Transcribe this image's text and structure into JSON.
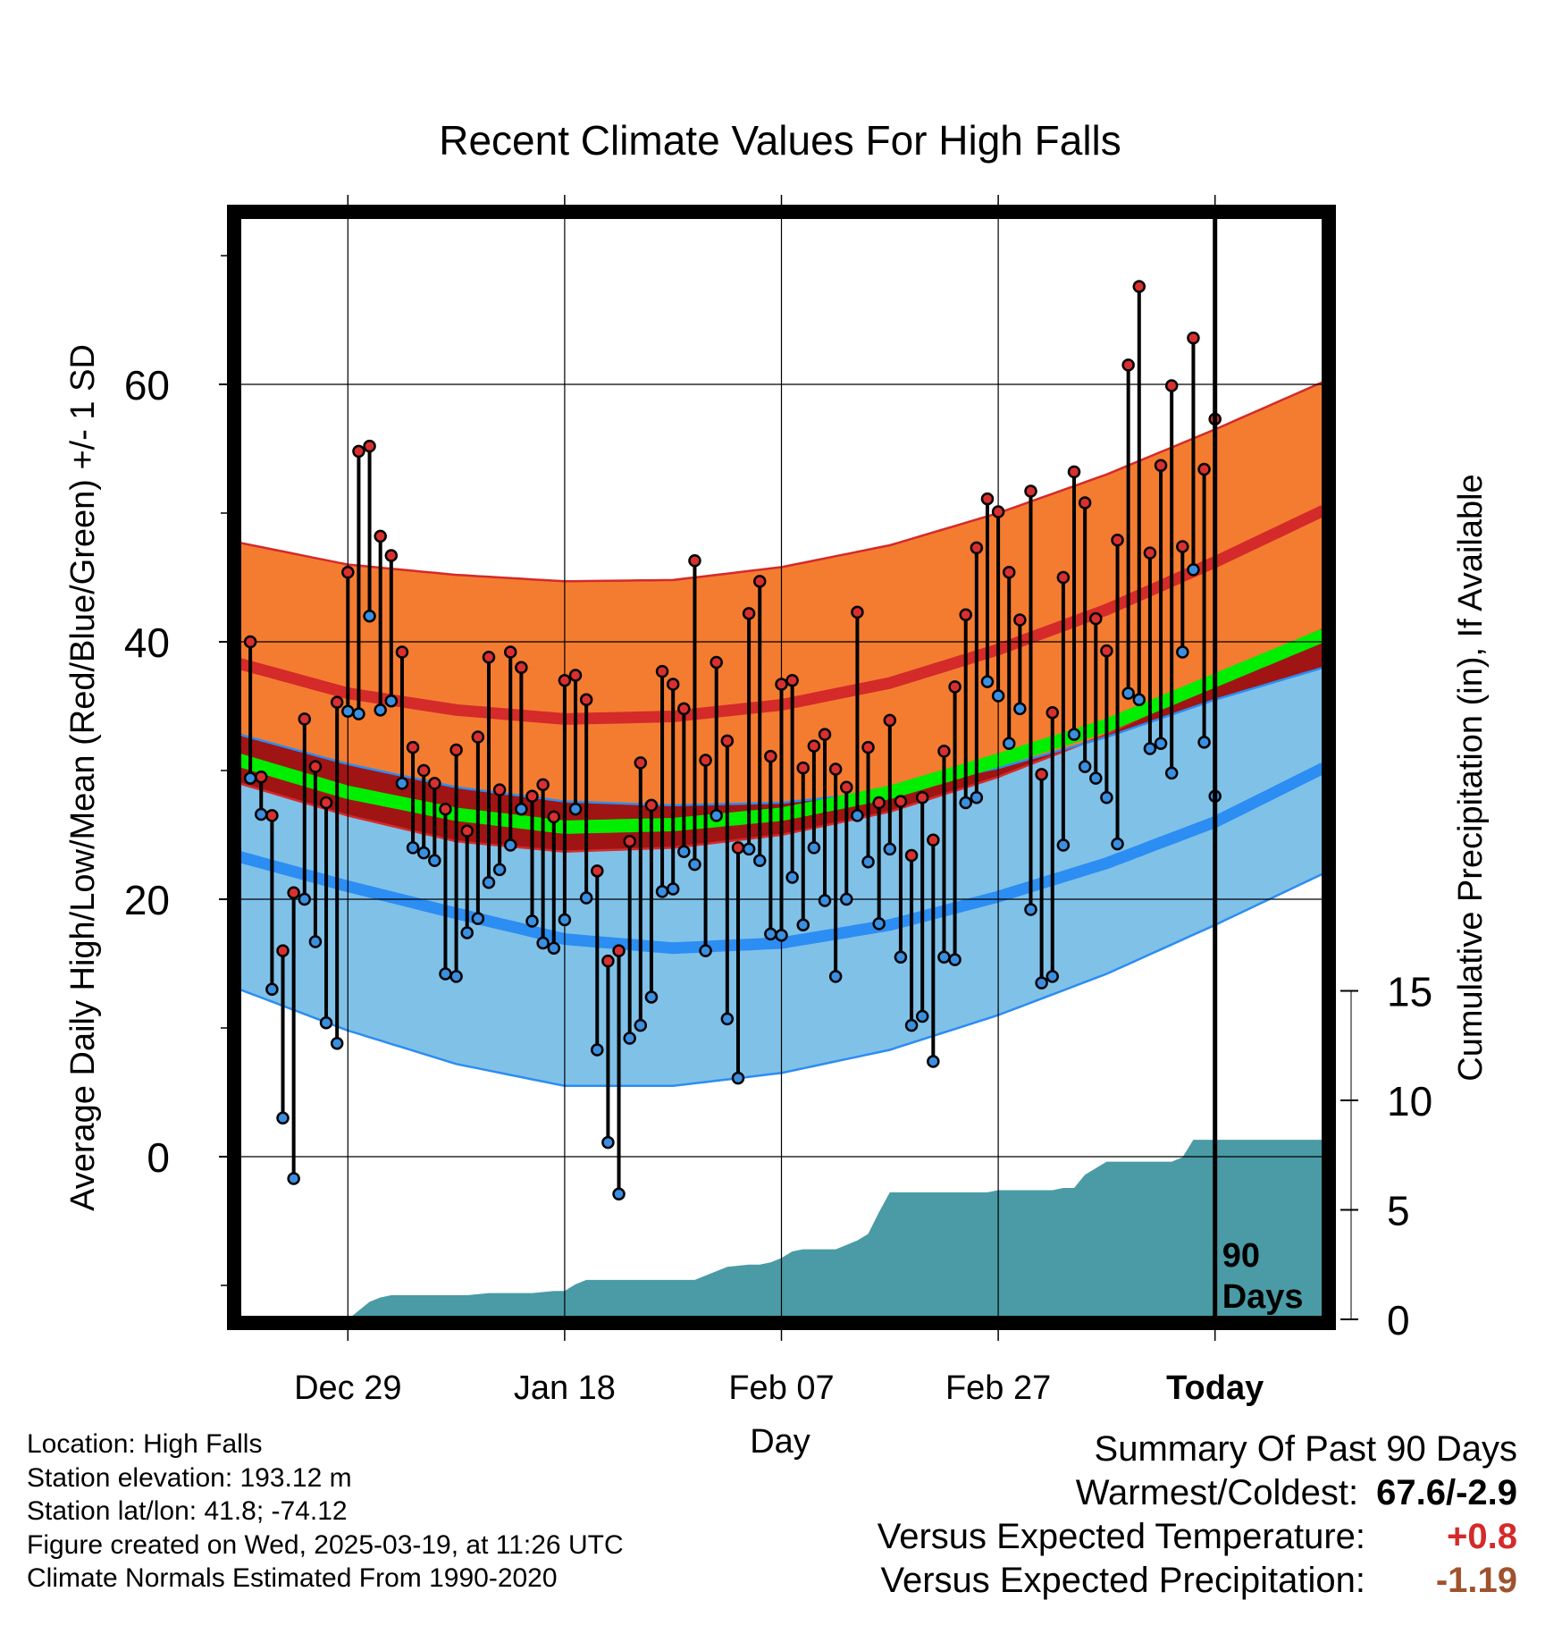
{
  "chart_data": {
    "type": "line",
    "title": "Recent Climate Values For High Falls",
    "xlabel": "Day",
    "ylabel_left": "Average Daily High/Low/Mean (Red/Blue/Green) +/- 1 SD",
    "ylabel_right": "Cumulative Precipitation (in), If Available",
    "x_range_days": [
      -90,
      10
    ],
    "ylim_temp": [
      -12.5,
      73
    ],
    "ylim_precip": [
      0,
      30
    ],
    "grid": true,
    "x_ticks": [
      {
        "day": -80,
        "label": "Dec 29"
      },
      {
        "day": -60,
        "label": "Jan 18"
      },
      {
        "day": -40,
        "label": "Feb 07"
      },
      {
        "day": -20,
        "label": "Feb 27"
      },
      {
        "day": 0,
        "label": "Today"
      }
    ],
    "y_ticks_temp": [
      0,
      20,
      40,
      60
    ],
    "y_ticks_precip": [
      0,
      5,
      10,
      15
    ],
    "today_marker_label": [
      "90",
      "Days"
    ],
    "normals": {
      "days": [
        -90,
        -80,
        -70,
        -60,
        -50,
        -40,
        -30,
        -20,
        -10,
        0,
        10
      ],
      "high_plus_sd": [
        47.7,
        46.0,
        45.2,
        44.7,
        44.8,
        45.8,
        47.5,
        50.0,
        53.0,
        56.5,
        60.2
      ],
      "high_mean": [
        38.3,
        36.0,
        34.7,
        34.0,
        34.2,
        35.1,
        36.8,
        39.4,
        42.5,
        46.2,
        50.2
      ],
      "high_minus_sd": [
        29.0,
        26.5,
        24.5,
        23.7,
        24.0,
        25.0,
        26.8,
        29.5,
        32.8,
        37.0,
        41.0
      ],
      "mean": [
        30.8,
        28.3,
        26.6,
        25.6,
        25.8,
        26.6,
        28.3,
        30.8,
        33.5,
        37.0,
        40.5
      ],
      "low_plus_sd": [
        32.8,
        30.5,
        28.7,
        27.6,
        27.3,
        27.5,
        28.4,
        30.2,
        32.6,
        35.5,
        38.0
      ],
      "low_mean": [
        23.3,
        21.0,
        18.9,
        16.9,
        16.2,
        16.6,
        18.0,
        20.2,
        22.8,
        26.0,
        30.2
      ],
      "low_minus_sd": [
        13.0,
        9.8,
        7.2,
        5.5,
        5.5,
        6.5,
        8.3,
        11.0,
        14.2,
        18.0,
        22.0
      ]
    },
    "observed": {
      "highs": [
        40.0,
        29.5,
        26.5,
        16.0,
        20.5,
        34.0,
        30.3,
        27.5,
        35.3,
        45.4,
        54.8,
        55.2,
        48.2,
        46.7,
        39.2,
        31.8,
        30.0,
        29.0,
        27.0,
        31.6,
        25.3,
        32.6,
        38.8,
        28.5,
        39.2,
        38.0,
        28.0,
        28.9,
        26.4,
        37.0,
        37.4,
        35.5,
        22.2,
        15.2,
        16.0,
        24.5,
        30.6,
        27.3,
        37.7,
        36.7,
        34.8,
        46.3,
        30.8,
        38.4,
        32.3,
        24.0,
        42.2,
        44.7,
        31.1,
        36.7,
        37.0,
        30.2,
        31.9,
        32.8,
        30.1,
        28.7,
        42.3,
        31.8,
        27.5,
        33.9,
        27.6,
        23.4,
        27.9,
        24.6,
        31.5,
        36.5,
        42.1,
        47.3,
        51.1,
        50.1,
        45.4,
        41.7,
        51.7,
        29.7,
        34.5,
        45.0,
        53.2,
        50.8,
        41.8,
        39.3,
        47.9,
        61.5,
        67.6,
        46.9,
        53.7,
        59.9,
        47.4,
        63.6,
        53.4,
        57.3
      ],
      "lows": [
        29.4,
        26.6,
        13.0,
        3.0,
        -1.7,
        20.0,
        16.7,
        10.4,
        8.8,
        34.6,
        34.4,
        42.0,
        34.7,
        35.4,
        29.0,
        24.0,
        23.6,
        23.0,
        14.2,
        14.0,
        17.4,
        18.5,
        21.3,
        22.3,
        24.2,
        27.0,
        18.3,
        16.6,
        16.2,
        18.4,
        27.0,
        20.1,
        8.3,
        1.1,
        -2.9,
        9.2,
        10.2,
        12.4,
        20.6,
        20.8,
        23.7,
        22.7,
        16.0,
        26.5,
        10.7,
        6.1,
        23.9,
        23.0,
        17.3,
        17.2,
        21.7,
        18.0,
        24.0,
        19.9,
        14.0,
        20.0,
        26.5,
        22.9,
        18.1,
        23.9,
        15.5,
        10.2,
        10.9,
        7.4,
        15.5,
        15.3,
        27.5,
        27.9,
        36.9,
        35.8,
        32.1,
        34.8,
        19.2,
        13.5,
        14.0,
        24.2,
        32.8,
        30.3,
        29.4,
        27.9,
        24.3,
        36.0,
        35.5,
        31.7,
        32.1,
        29.8,
        39.2,
        45.6,
        32.2,
        28.0
      ]
    },
    "precip_cumulative": {
      "days": [
        -90,
        -81,
        -80,
        -79,
        -78,
        -77,
        -76,
        -75,
        -74,
        -73,
        -71,
        -69,
        -67,
        -65,
        -63,
        -61,
        -60,
        -59,
        -58,
        -56,
        -54,
        -52,
        -50,
        -49,
        -48,
        -47,
        -46,
        -45,
        -43,
        -42,
        -41,
        -40,
        -39,
        -38,
        -36,
        -35,
        -34,
        -33,
        -32,
        -31,
        -30,
        -28,
        -26,
        -24,
        -22,
        -21,
        -20,
        -18,
        -16,
        -15,
        -14,
        -13,
        -12,
        -10,
        -8,
        -6,
        -5,
        -4,
        -3,
        -2,
        -1,
        0,
        10
      ],
      "values": [
        0.0,
        0.0,
        0.0,
        0.4,
        0.8,
        1.0,
        1.1,
        1.1,
        1.1,
        1.1,
        1.1,
        1.1,
        1.2,
        1.2,
        1.2,
        1.3,
        1.3,
        1.6,
        1.8,
        1.8,
        1.8,
        1.8,
        1.8,
        1.8,
        1.8,
        2.0,
        2.2,
        2.4,
        2.5,
        2.5,
        2.6,
        2.8,
        3.1,
        3.2,
        3.2,
        3.2,
        3.4,
        3.6,
        3.9,
        4.9,
        5.8,
        5.8,
        5.8,
        5.8,
        5.8,
        5.8,
        5.9,
        5.9,
        5.9,
        5.9,
        6.0,
        6.0,
        6.6,
        7.2,
        7.2,
        7.2,
        7.2,
        7.2,
        7.4,
        8.2,
        8.2,
        8.2,
        8.2
      ]
    }
  },
  "footer": {
    "location": "Location: High Falls",
    "elevation": "Station elevation: 193.12 m",
    "latlon": "Station lat/lon: 41.8; -74.12",
    "created": "Figure created on Wed, 2025-03-19, at 11:26 UTC",
    "normals_period": "Climate Normals Estimated From 1990-2020"
  },
  "summary": {
    "heading": "Summary Of Past 90 Days",
    "warm_cold_label": "Warmest/Coldest:",
    "warm_cold_value": "67.6/-2.9",
    "temp_label": "Versus Expected Temperature:",
    "temp_value": "+0.8",
    "precip_label": "Versus Expected Precipitation:",
    "precip_value": "-1.19"
  },
  "colors": {
    "high_band": "#f47c30",
    "high_line": "#d42a2a",
    "low_band": "#80c1e8",
    "low_line": "#2c8df2",
    "mean_line": "#00ee00",
    "overlap_band": "#a01414",
    "precip_fill": "#4a9ba5",
    "high_dot": "#d83030",
    "low_dot": "#3a8fe0",
    "temp_anomaly": "#d42a2a",
    "precip_anomaly": "#a0522d"
  }
}
